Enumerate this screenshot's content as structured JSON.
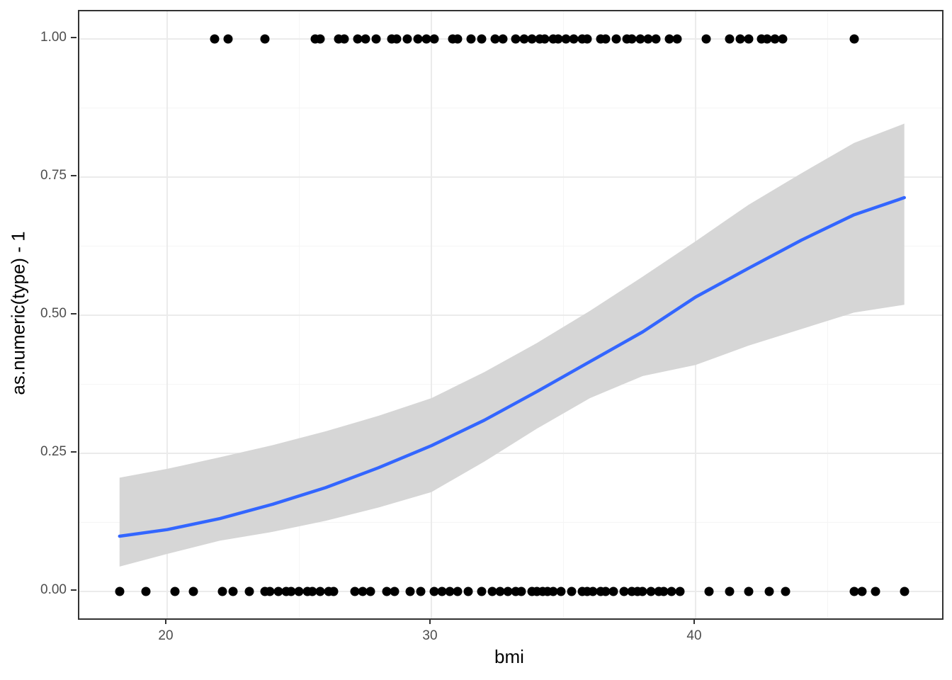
{
  "chart_data": {
    "type": "scatter",
    "title": "",
    "xlabel": "bmi",
    "ylabel": "as.numeric(type) - 1",
    "legend": "none",
    "grid": true,
    "xlim": [
      16.676,
      49.33
    ],
    "ylim": [
      -0.0487,
      1.0503
    ],
    "x_major_ticks": [
      20,
      30,
      40
    ],
    "x_tick_labels": [
      "20",
      "30",
      "40"
    ],
    "x_minor_gridlines": [
      25,
      35,
      45
    ],
    "y_major_ticks": [
      0,
      0.25,
      0.5,
      0.75,
      1.0
    ],
    "y_tick_labels": [
      "0.00",
      "0.25",
      "0.50",
      "0.75",
      "1.00"
    ],
    "y_minor_gridlines": [
      0.125,
      0.375,
      0.625,
      0.875
    ],
    "series": [
      {
        "name": "observations_type_1",
        "type": "scatter",
        "y_value": 1,
        "x": [
          21.8,
          22.3,
          23.7,
          25.6,
          25.8,
          26.5,
          26.7,
          27.2,
          27.5,
          27.9,
          28.5,
          28.7,
          29.1,
          29.5,
          29.8,
          30.1,
          30.8,
          31.0,
          31.5,
          31.9,
          32.4,
          32.7,
          33.2,
          33.5,
          33.8,
          34.1,
          34.3,
          34.6,
          34.8,
          35.1,
          35.4,
          35.7,
          35.9,
          36.4,
          36.6,
          37.0,
          37.4,
          37.6,
          37.9,
          38.2,
          38.5,
          39.0,
          39.3,
          40.4,
          41.3,
          41.7,
          42.0,
          42.5,
          42.7,
          43.0,
          43.3,
          46.0
        ]
      },
      {
        "name": "observations_type_0",
        "type": "scatter",
        "y_value": 0,
        "x": [
          18.2,
          19.2,
          20.3,
          21.0,
          22.1,
          22.5,
          23.1,
          23.7,
          23.9,
          24.2,
          24.5,
          24.7,
          25.0,
          25.3,
          25.5,
          25.8,
          26.1,
          26.3,
          27.1,
          27.4,
          27.7,
          28.3,
          28.6,
          29.2,
          29.6,
          30.1,
          30.4,
          30.7,
          31.0,
          31.4,
          31.9,
          32.3,
          32.6,
          32.9,
          33.2,
          33.4,
          33.8,
          34.0,
          34.2,
          34.4,
          34.6,
          34.9,
          35.3,
          35.7,
          35.9,
          36.1,
          36.4,
          36.6,
          36.9,
          37.3,
          37.6,
          37.8,
          38.0,
          38.3,
          38.6,
          38.8,
          39.1,
          39.4,
          40.5,
          41.3,
          42.0,
          42.8,
          43.4,
          46.0,
          46.3,
          46.8,
          47.9
        ]
      },
      {
        "name": "logistic_smooth_fit",
        "type": "line",
        "x": [
          18.2,
          20,
          22,
          24,
          26,
          28,
          30,
          32,
          34,
          36,
          38,
          40,
          42,
          44,
          46,
          47.9
        ],
        "y": [
          0.1,
          0.112,
          0.132,
          0.158,
          0.188,
          0.224,
          0.264,
          0.31,
          0.362,
          0.416,
          0.47,
          0.533,
          0.585,
          0.636,
          0.682,
          0.713
        ]
      },
      {
        "name": "confidence_band",
        "type": "area",
        "x": [
          18.2,
          20,
          22,
          24,
          26,
          28,
          30,
          32,
          34,
          36,
          38,
          40,
          42,
          44,
          46,
          47.9
        ],
        "upper": [
          0.206,
          0.222,
          0.243,
          0.265,
          0.29,
          0.318,
          0.35,
          0.397,
          0.45,
          0.508,
          0.57,
          0.634,
          0.7,
          0.757,
          0.812,
          0.847
        ],
        "lower": [
          0.045,
          0.068,
          0.092,
          0.108,
          0.128,
          0.152,
          0.18,
          0.235,
          0.295,
          0.35,
          0.39,
          0.41,
          0.445,
          0.475,
          0.505,
          0.519
        ]
      }
    ],
    "style": {
      "point_color": "#000000",
      "line_color": "#3366FF",
      "band_color": "#D6D6D6",
      "grid_major_color": "#EBEBEB",
      "grid_minor_color": "#F5F5F5",
      "panel_border_color": "#333333",
      "tick_label_color": "#4D4D4D",
      "axis_title_color": "#000000",
      "background": "#FFFFFF"
    }
  }
}
